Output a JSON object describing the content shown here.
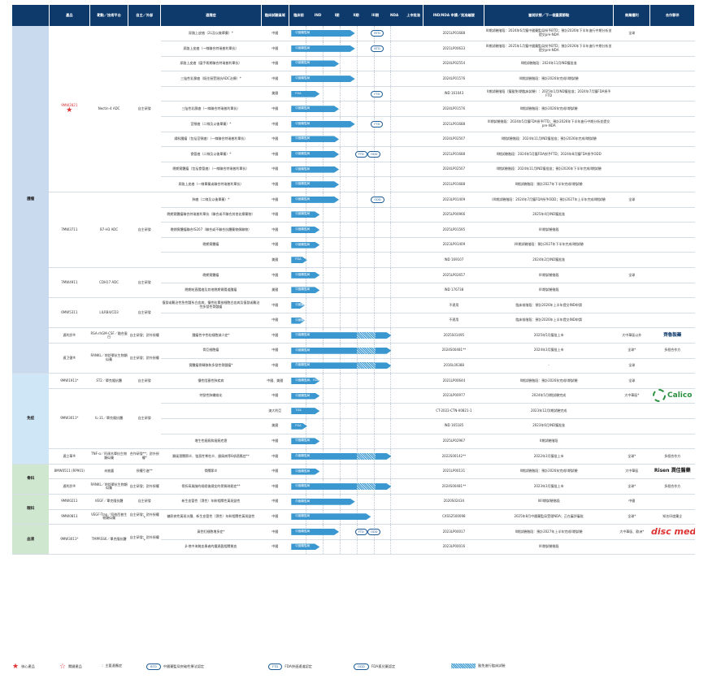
{
  "headers": [
    "產品",
    "靶點／技術平台",
    "自主／外部",
    "適應症",
    "臨床試驗區域",
    "臨床前",
    "IND",
    "I期",
    "II期",
    "III期",
    "NDA",
    "上市批准",
    "IND/NDA 申請／批准編號",
    "當前狀態／下一個重要節點",
    "商業權利",
    "合作夥伴"
  ],
  "groups": [
    {
      "name": "腫瘤",
      "rows": [
        {
          "product": "9MW2821",
          "product_core": true,
          "target": "Nectin-4 ADC",
          "source": "自主研發",
          "ind": "尿路上皮癌（2L及以後單藥）*",
          "region": "中國",
          "stage_label": "中國藥監局",
          "bar_end": 0.56,
          "badges": [
            {
              "label": "BTD",
              "pos": 0.7
            }
          ],
          "code": "2021LP01688",
          "status": "III期試驗階段：2024年6月獲中國藥監局授予BTD；預計2026年下半年進行中期分析並提交pre-NDA",
          "rights": "全球",
          "partner": ""
        },
        {
          "ind": "尿路上皮癌（一線聯合特瑞普利單抗）",
          "region": "中國",
          "stage_label": "中國藥監局",
          "bar_end": 0.56,
          "badges": [
            {
              "label": "BTD",
              "pos": 0.7
            }
          ],
          "code": "2021LP00633",
          "status": "III期試驗階段：2025年1月獲中國藥監局授予BTD；預計2026年下半年進行中期分析並提交pre-NDA"
        },
        {
          "ind": "尿路上皮癌（圍手術期聯合特瑞普利單抗）",
          "region": "中國",
          "stage_label": "中國藥監局",
          "bar_end": 0.42,
          "badges": [],
          "code": "2024LP02554",
          "status": "II期試驗階段：2024年11月IND獲批准"
        },
        {
          "ind": "三陰性乳腺癌（既往接受過抗ADC治療）*",
          "region": "中國",
          "stage_label": "中國藥監局",
          "bar_end": 0.56,
          "badges": [],
          "code": "2024LP01576",
          "status": "III期試驗階段：預計2026年完成III期試驗"
        },
        {
          "ind": "",
          "region": "美國",
          "stage_label": "FDA",
          "bar_end": 0.25,
          "badges": [
            {
              "label": "FTD",
              "pos": 0.7
            }
          ],
          "code": "IND 161043",
          "status": "II期試驗階段（獲豁免I期臨床試驗）：2025年1月IND獲批准；2024年7月獲FDA授予FTD"
        },
        {
          "ind": "三陰性乳腺癌（一線聯合特瑞普利單抗）",
          "region": "中國",
          "stage_label": "中國藥監局",
          "bar_end": 0.42,
          "badges": [],
          "code": "2024LP01576",
          "status": "II期試驗階段：預計2026年完成II期試驗"
        },
        {
          "ind": "宮頸癌（二線及以後單藥）*",
          "region": "中國",
          "stage_label": "中國藥監局",
          "bar_end": 0.56,
          "badges": [
            {
              "label": "FTD",
              "pos": 0.7
            }
          ],
          "code": "2021LP01688",
          "status": "III期試驗階段：2024年5月獲FDA授予FTD；預計2026年下半年進行中期分析並提交pre-NDA"
        },
        {
          "ind": "婦科腫瘤（包括宮頸癌）（一線聯合特瑞普利單抗）",
          "region": "中國",
          "stage_label": "中國藥監局",
          "bar_end": 0.42,
          "badges": [],
          "code": "2024LP02507",
          "status": "II期試驗階段：2024年11月IND獲批准；預計2026年完成II期試驗"
        },
        {
          "ind": "食管癌（二線及以後單藥）*",
          "region": "中國",
          "stage_label": "中國藥監局",
          "bar_end": 0.42,
          "badges": [
            {
              "label": "FTD",
              "pos": 0.56
            },
            {
              "label": "ODD",
              "pos": 0.67
            }
          ],
          "code": "2021LP01688",
          "status": "II期試驗階段：2024年5月獲FDA授予FTD；2024年8月獲FDA授予ODD"
        },
        {
          "ind": "晚期實體瘤（包括食管癌）（一線聯合特瑞普利單抗）",
          "region": "中國",
          "stage_label": "中國藥監局",
          "bar_end": 0.42,
          "badges": [],
          "code": "2024LP02507",
          "status": "II期試驗階段：2024年11月IND獲批准；預計2026年下半年完成II期試驗"
        },
        {
          "ind": "尿路上皮癌（一線單藥或聯合特瑞普利單抗）",
          "region": "中國",
          "stage_label": "中國藥監局",
          "bar_end": 0.42,
          "badges": [],
          "code": "2021LP01688",
          "status": "II期試驗階段：預計2027年下半年完成II期試驗"
        },
        {
          "product": "7MW3711",
          "target": "B7-H3 ADC",
          "source": "自主研發",
          "ind": "肺癌（二線及以後單藥）*",
          "region": "中國",
          "stage_label": "中國藥監局",
          "bar_end": 0.42,
          "badges": [
            {
              "label": "ODD",
              "pos": 0.7
            }
          ],
          "code": "2023LP01409",
          "status": "I/II期試驗階段：2024年7月獲FDA授予ODD；預計2027年上半年完成II期試驗",
          "rights": "全球"
        },
        {
          "ind": "晚期實體瘤聯合特瑞普利單抗（聯合或不聯合其他化療藥物）",
          "region": "中國",
          "stage_label": "中國藥監局",
          "bar_end": 0.25,
          "badges": [],
          "code": "2025LP00966",
          "status": "2025年4月IND獲批准"
        },
        {
          "ind": "晚期實體瘤聯合IS207（聯合或不聯合抗體藥物偶聯物）",
          "region": "中國",
          "stage_label": "中國藥監局",
          "bar_end": 0.25,
          "badges": [],
          "code": "2025LP01595",
          "status": "I/II期試驗階段"
        },
        {
          "ind": "晚期實體瘤",
          "region": "中國",
          "stage_label": "中國藥監局",
          "bar_end": 0.25,
          "badges": [],
          "code": "2023LP01409",
          "status": "I/II期試驗階段：預計2027年下半年完成II期試驗"
        },
        {
          "ind": "",
          "region": "美國",
          "stage_label": "FDA",
          "bar_end": 0.14,
          "badges": [],
          "code": "IND 169107",
          "status": "2024年2月IND獲批准"
        },
        {
          "product": "7MW4911",
          "target": "CDH17 ADC",
          "source": "自主研發",
          "ind": "晚期實體瘤",
          "region": "中國",
          "stage_label": "中國藥監局",
          "bar_end": 0.25,
          "badges": [],
          "code": "2025LP02657",
          "status": "I/II期試驗階段",
          "rights": "全球"
        },
        {
          "ind": "晚期結直腸癌及其他晚期胃腸道腫瘤",
          "region": "美國",
          "stage_label": "中國藥監局",
          "bar_end": 0.25,
          "badges": [],
          "code": "IND 176738",
          "status": "I/II期試驗階段"
        },
        {
          "product": "6MW5311",
          "target": "LILRB4/CD3",
          "source": "自主研發",
          "ind": "復發或難治性急性髓系白血病、慢性粒單核細胞白血病及復發或難治性多發性骨髓瘤",
          "region": "中國",
          "stage_label": "中國藥監局",
          "bar_end": 0.12,
          "badges": [],
          "code": "不適用",
          "status": "臨床前階段：預計2026年上半年提交IND申請"
        },
        {
          "ind": "",
          "region": "中國",
          "stage_label": "中國藥監局",
          "bar_end": 0.12,
          "badges": [],
          "code": "不適用",
          "status": "臨床前階段：預計2026年上半年提交IND申請"
        },
        {
          "product": "邁利舒®",
          "target": "RSA-rhGM-CSF／融合蛋白",
          "source": "自主研發；對外授權",
          "ind": "腫瘤性中性粒細胞減少症*",
          "region": "中國",
          "stage_label": "中國藥監局",
          "bar_end": 0.88,
          "badges": [],
          "code": "2025S01495",
          "status": "2025年5月獲批上市",
          "rights": "大中華區以外",
          "partner": "齊魯製藥"
        },
        {
          "product": "邁卫健®",
          "target": "RANKL／地舒單抗生物類似藥",
          "source": "自主研發；對外授權",
          "ind": "骨巨細胞瘤",
          "region": "中國",
          "stage_label": "中國藥監局",
          "bar_end": 0.88,
          "badges": [],
          "code": "2024S00481**",
          "status": "2024年3月獲批上市",
          "rights": "全球*",
          "partner": "多個合作方"
        },
        {
          "ind": "實體瘤骨轉移和多發性骨髓瘤*",
          "region": "中國",
          "stage_label": "中國藥監局",
          "bar_end": 0.88,
          "badges": [],
          "code": "2016L00388",
          "status": "-",
          "rights": "全球"
        }
      ]
    },
    {
      "name": "免疫",
      "rows": [
        {
          "product": "9MW1911*",
          "target": "ST2／單克隆抗體",
          "source": "自主研發",
          "ind": "慢性阻塞性肺疾病",
          "region": "中國、美國",
          "stage_label": "中國藥監局、FDA",
          "bar_end": 0.25,
          "badges": [],
          "code": "2021LP00644",
          "status": "II期試驗階段：預計2026年完成II期試驗",
          "rights": "全球"
        },
        {
          "product": "9MW3011*",
          "target": "IL-11／單克隆抗體",
          "source": "自主研發",
          "ind": "特發性肺纖維化",
          "region": "中國",
          "stage_label": "中國藥監局",
          "bar_end": 0.25,
          "badges": [],
          "code": "2023LP00977",
          "status": "2024年5月I期試驗完成",
          "rights": "大中華區*",
          "partner": "Calico"
        },
        {
          "ind": "",
          "region": "澳大利亞",
          "stage_label": "TGA",
          "bar_end": 0.25,
          "badges": [],
          "code": "CT-2022-CTN-00821-1",
          "status": "2023年12月I期試驗完成"
        },
        {
          "ind": "",
          "region": "美國",
          "stage_label": "FDA",
          "bar_end": 0.14,
          "badges": [],
          "code": "IND 165185",
          "status": "2023年6月IND獲批准"
        },
        {
          "ind": "增生性瘢痕和瘢痕疙瘩",
          "region": "中國",
          "stage_label": "中國藥監局",
          "bar_end": 0.25,
          "badges": [],
          "code": "2025LP02967",
          "status": "II期試驗階段"
        },
        {
          "product": "邁立華®",
          "target": "TNF-α／阿達木單抗生物類似藥",
          "source": "合作研發**；對外授權*",
          "ind": "類風濕關節炎、強直性脊柱炎、銀屑病等8項適應症**",
          "region": "中國",
          "stage_label": "中國藥監局",
          "bar_end": 0.88,
          "badges": [],
          "code": "2022S00142**",
          "status": "2022年3月獲批上市",
          "rights": "全球*",
          "partner": "多個合作方"
        }
      ]
    },
    {
      "name": "骨科",
      "rows": [
        {
          "product": "8MW0511 (RP901)",
          "target": "未披露",
          "source": "授權引進**",
          "ind": "骨關節炎",
          "region": "中國",
          "stage_label": "中國藥監局",
          "bar_end": 0.25,
          "badges": [],
          "code": "2021LP00131",
          "status": "II期試驗階段：預計2026年完成II期試驗",
          "rights": "大中華區",
          "partner": "Risen 潤佳醫藥"
        },
        {
          "product": "邁利舒®",
          "target": "RANKL／地舒單抗生物類似藥",
          "source": "自主研發；對外授權",
          "ind": "骨折高風險的絕經後婦女的骨質疏鬆症**",
          "region": "中國",
          "stage_label": "中國藥監局",
          "bar_end": 0.88,
          "badges": [],
          "code": "2024S00481**",
          "status": "2023年3月獲批上市",
          "rights": "全球*",
          "partner": "多個合作方"
        }
      ]
    },
    {
      "name": "眼科",
      "rows": [
        {
          "product": "9MW0211",
          "target": "VEGF／單克隆抗體",
          "source": "自主研發",
          "ind": "新生血管性（濕性）年齡相關性黃斑變性",
          "region": "中國",
          "stage_label": "中國藥監局",
          "bar_end": 0.56,
          "badges": [],
          "code": "2020S02434",
          "status": "II/III期試驗階段",
          "rights": "中國"
        },
        {
          "product": "9MW0813",
          "target": "VEGF-Trap／阿柏西普生物類似藥",
          "source": "自主研發；對外授權*",
          "ind": "糖尿病性黃斑水腫、新生血管性（濕性）年齡相關性黃斑變性",
          "region": "中國",
          "stage_label": "中國藥監局",
          "bar_end": 0.7,
          "badges": [],
          "code": "CXSS2500098",
          "status": "2025年8月中國藥監局受理NDA；正在審評審批",
          "rights": "全球*",
          "partner": "知名印度藥企"
        }
      ]
    },
    {
      "name": "血液",
      "rows": [
        {
          "product": "9MW3011*",
          "target": "TMPRSS6／單克隆抗體",
          "source": "自主研發；對外授權*",
          "ind": "真性紅細胞增多症*",
          "region": "中國",
          "stage_label": "中國藥監局",
          "bar_end": 0.42,
          "badges": [
            {
              "label": "FTD",
              "pos": 0.56
            },
            {
              "label": "ODD",
              "pos": 0.67
            }
          ],
          "code": "2023LP00017",
          "status": "II期試驗階段：預計2027年上半年完成II期試驗",
          "rights": "大中華區、歐洲*",
          "partner": "disc medicine"
        },
        {
          "ind": "β-地中海貧血患者的鐵過載相關貧血",
          "region": "中國",
          "stage_label": "中國藥監局",
          "bar_end": 0.25,
          "badges": [],
          "code": "2023LP00016",
          "status": "I/II期試驗階段"
        }
      ]
    }
  ],
  "legend": {
    "core": "核心產品",
    "key": "關鍵產品",
    "target_note": "：主要適應症",
    "btd": "BTD",
    "btd_text": "中國藥監局突破性療法認定",
    "ftd": "FTD",
    "ftd_text": "FDA快速通道認定",
    "odd": "ODD",
    "odd_text": "FDA孤兒藥認定",
    "hatch_text": "豁免進行臨床試驗"
  },
  "colors": {
    "header": "#0e3a6b",
    "bar": "#3a97cf",
    "badge": "#1d5c96",
    "core": "#dd3333"
  }
}
